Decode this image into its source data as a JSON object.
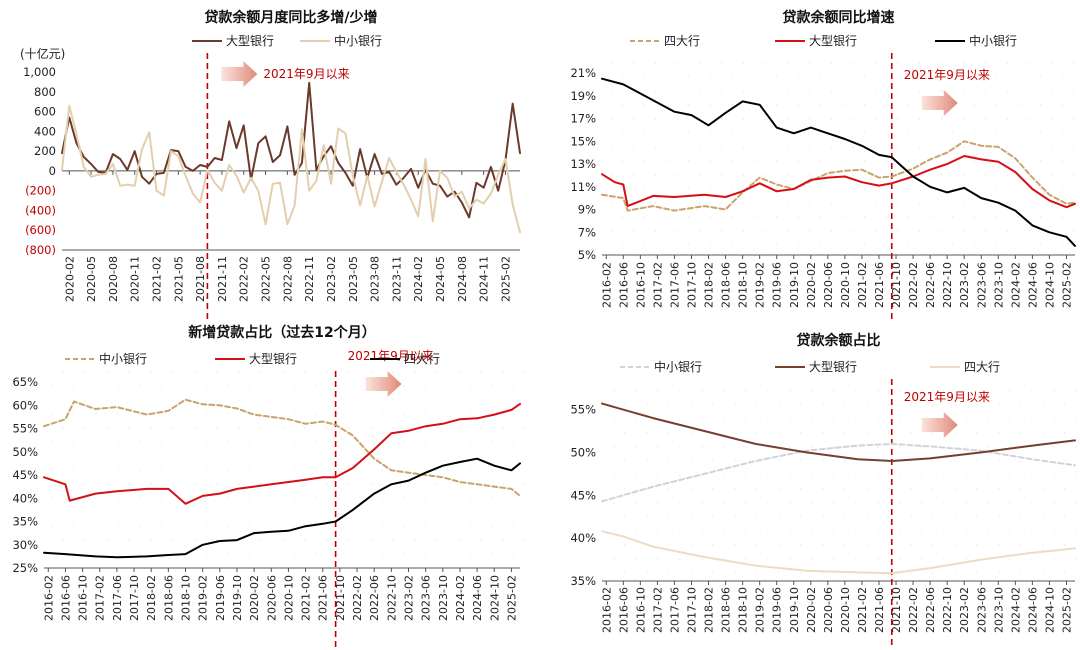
{
  "colors": {
    "large_bank": "#6b3a2a",
    "small_bank": "#e3cfae",
    "big_four_red": "#d40f17",
    "small_bank_dashed": "#c9a36b",
    "black": "#000000",
    "grey_dashed": "#d0d3da",
    "brown_large": "#74402c",
    "beige": "#ecdcc2",
    "vline": "#c00000",
    "annotation": "#c00000",
    "arrow": "#e08a7a"
  },
  "chart_data": [
    {
      "id": "monthly-change",
      "type": "line",
      "title": "贷款余额月度同比多增/少增",
      "ylabel": "(十亿元)",
      "ylim": [
        -800,
        1000
      ],
      "yticks": [
        1000,
        800,
        600,
        400,
        200,
        0,
        -200,
        -400,
        -600,
        -800
      ],
      "ytick_labels": [
        "1,000",
        "800",
        "600",
        "400",
        "200",
        "0",
        "(200)",
        "(400)",
        "(600)",
        "(800)"
      ],
      "x_start": "2020-01",
      "x_end": "2025-04",
      "xticks": [
        "2020-02",
        "2020-05",
        "2020-08",
        "2020-11",
        "2021-02",
        "2021-05",
        "2021-08",
        "2021-11",
        "2022-02",
        "2022-05",
        "2022-08",
        "2022-11",
        "2023-02",
        "2023-05",
        "2023-08",
        "2023-11",
        "2024-02",
        "2024-05",
        "2024-08",
        "2024-11",
        "2025-02"
      ],
      "vline": "2021-09",
      "annotation": "2021年9月以来",
      "series": [
        {
          "name": "大型银行",
          "color_key": "large_bank",
          "style": "solid",
          "width": 2,
          "values": [
            180,
            540,
            280,
            140,
            70,
            -10,
            -20,
            170,
            120,
            10,
            200,
            -60,
            -130,
            -30,
            -20,
            210,
            200,
            40,
            0,
            60,
            40,
            130,
            110,
            500,
            230,
            460,
            -90,
            280,
            350,
            90,
            160,
            450,
            -40,
            80,
            890,
            10,
            150,
            250,
            80,
            -20,
            -150,
            220,
            -70,
            170,
            -30,
            -10,
            -140,
            -70,
            20,
            -170,
            10,
            -130,
            -150,
            -260,
            -210,
            -320,
            -470,
            -120,
            -170,
            40,
            -200,
            110,
            680,
            180
          ]
        },
        {
          "name": "中小银行",
          "color_key": "small_bank",
          "style": "solid",
          "width": 2,
          "values": [
            10,
            660,
            370,
            40,
            -60,
            -40,
            -30,
            70,
            -150,
            -140,
            -150,
            220,
            390,
            -200,
            -250,
            200,
            150,
            -50,
            -230,
            -320,
            10,
            -120,
            -200,
            60,
            -50,
            -220,
            -70,
            -200,
            -540,
            -130,
            -120,
            -540,
            -350,
            420,
            -200,
            -100,
            260,
            -130,
            430,
            380,
            -50,
            -350,
            -50,
            -360,
            -110,
            130,
            -10,
            -140,
            -290,
            -460,
            120,
            -510,
            0,
            -70,
            -260,
            -210,
            -380,
            -290,
            -330,
            -230,
            -40,
            120,
            -340,
            -620
          ]
        }
      ]
    },
    {
      "id": "yoy-growth",
      "type": "line",
      "title": "贷款余额同比增速",
      "ylim": [
        5,
        21
      ],
      "yticks": [
        21,
        19,
        17,
        15,
        13,
        11,
        9,
        7,
        5
      ],
      "ytick_labels": [
        "21%",
        "19%",
        "17%",
        "15%",
        "13%",
        "11%",
        "9%",
        "7%",
        "5%"
      ],
      "x_start": "2016-01",
      "x_end": "2025-04",
      "xticks": [
        "2016-02",
        "2016-06",
        "2016-10",
        "2017-02",
        "2017-06",
        "2017-10",
        "2018-02",
        "2018-06",
        "2018-10",
        "2019-02",
        "2019-06",
        "2019-10",
        "2020-02",
        "2020-06",
        "2020-10",
        "2021-02",
        "2021-06",
        "2021-10",
        "2022-02",
        "2022-06",
        "2022-10",
        "2023-02",
        "2023-06",
        "2023-10",
        "2024-02",
        "2024-06",
        "2024-10",
        "2025-02"
      ],
      "vline": "2021-09",
      "annotation": "2021年9月以来",
      "series": [
        {
          "name": "四大行",
          "color_key": "small_bank_dashed",
          "style": "dashed",
          "width": 2,
          "x": [
            "2016-01",
            "2016-06",
            "2016-07",
            "2017-01",
            "2017-06",
            "2018-01",
            "2018-06",
            "2018-10",
            "2019-02",
            "2019-06",
            "2019-10",
            "2020-02",
            "2020-06",
            "2020-10",
            "2021-02",
            "2021-06",
            "2021-09",
            "2022-02",
            "2022-06",
            "2022-10",
            "2023-02",
            "2023-06",
            "2023-10",
            "2024-02",
            "2024-06",
            "2024-10",
            "2025-02",
            "2025-04"
          ],
          "values": [
            10.3,
            10.0,
            8.9,
            9.3,
            8.9,
            9.3,
            9.0,
            10.5,
            11.8,
            11.2,
            10.8,
            11.5,
            12.2,
            12.4,
            12.5,
            11.8,
            11.9,
            12.6,
            13.4,
            14.0,
            15.0,
            14.6,
            14.5,
            13.5,
            11.8,
            10.3,
            9.5,
            9.6
          ]
        },
        {
          "name": "大型银行",
          "color_key": "big_four_red",
          "style": "solid",
          "width": 2,
          "x": [
            "2016-01",
            "2016-04",
            "2016-06",
            "2016-07",
            "2017-01",
            "2017-06",
            "2018-01",
            "2018-06",
            "2018-10",
            "2019-02",
            "2019-06",
            "2019-10",
            "2020-02",
            "2020-06",
            "2020-10",
            "2021-02",
            "2021-06",
            "2021-09",
            "2022-02",
            "2022-06",
            "2022-10",
            "2023-02",
            "2023-06",
            "2023-10",
            "2024-02",
            "2024-06",
            "2024-10",
            "2025-02",
            "2025-04"
          ],
          "values": [
            12.1,
            11.4,
            11.2,
            9.3,
            10.2,
            10.1,
            10.3,
            10.1,
            10.6,
            11.3,
            10.6,
            10.8,
            11.6,
            11.8,
            11.9,
            11.4,
            11.1,
            11.3,
            11.9,
            12.5,
            13.0,
            13.7,
            13.4,
            13.2,
            12.3,
            10.8,
            9.8,
            9.2,
            9.5
          ]
        },
        {
          "name": "中小银行",
          "color_key": "black",
          "style": "solid",
          "width": 2,
          "x": [
            "2016-01",
            "2016-06",
            "2016-10",
            "2017-02",
            "2017-06",
            "2017-10",
            "2018-02",
            "2018-06",
            "2018-10",
            "2019-02",
            "2019-06",
            "2019-10",
            "2020-02",
            "2020-06",
            "2020-10",
            "2021-02",
            "2021-06",
            "2021-09",
            "2022-02",
            "2022-06",
            "2022-10",
            "2023-02",
            "2023-06",
            "2023-10",
            "2024-02",
            "2024-06",
            "2024-10",
            "2025-02",
            "2025-04"
          ],
          "values": [
            20.5,
            20.0,
            19.2,
            18.4,
            17.6,
            17.3,
            16.4,
            17.5,
            18.5,
            18.2,
            16.2,
            15.7,
            16.2,
            15.7,
            15.2,
            14.6,
            13.8,
            13.6,
            11.9,
            11.0,
            10.5,
            10.9,
            10.0,
            9.6,
            8.9,
            7.6,
            7.0,
            6.6,
            5.8
          ]
        }
      ]
    },
    {
      "id": "new-loan-share",
      "type": "line",
      "title": "新增贷款占比（过去12个月）",
      "ylim": [
        25,
        65
      ],
      "yticks": [
        65,
        60,
        55,
        50,
        45,
        40,
        35,
        30,
        25
      ],
      "ytick_labels": [
        "65%",
        "60%",
        "55%",
        "50%",
        "45%",
        "40%",
        "35%",
        "30%",
        "25%"
      ],
      "x_start": "2016-01",
      "x_end": "2025-04",
      "xticks": [
        "2016-02",
        "2016-06",
        "2016-10",
        "2017-02",
        "2017-06",
        "2017-10",
        "2018-02",
        "2018-06",
        "2018-10",
        "2019-02",
        "2019-06",
        "2019-10",
        "2020-02",
        "2020-06",
        "2020-10",
        "2021-02",
        "2021-06",
        "2021-10",
        "2022-02",
        "2022-06",
        "2022-10",
        "2023-02",
        "2023-06",
        "2023-10",
        "2024-02",
        "2024-06",
        "2024-10",
        "2025-02"
      ],
      "vline": "2021-09",
      "annotation": "2021年9月以来",
      "series": [
        {
          "name": "中小银行",
          "color_key": "small_bank_dashed",
          "style": "dashed",
          "width": 2,
          "x": [
            "2016-01",
            "2016-06",
            "2016-08",
            "2017-01",
            "2017-06",
            "2018-01",
            "2018-06",
            "2018-10",
            "2019-02",
            "2019-06",
            "2019-10",
            "2020-02",
            "2020-06",
            "2020-10",
            "2021-02",
            "2021-06",
            "2021-09",
            "2022-01",
            "2022-06",
            "2022-10",
            "2023-02",
            "2023-06",
            "2023-10",
            "2024-02",
            "2024-06",
            "2024-10",
            "2025-02",
            "2025-04"
          ],
          "values": [
            55.5,
            57.0,
            60.8,
            59.2,
            59.6,
            58.0,
            58.8,
            61.2,
            60.2,
            60.0,
            59.3,
            58.0,
            57.5,
            57.0,
            56.0,
            56.5,
            55.8,
            53.5,
            48.5,
            46.0,
            45.5,
            45.0,
            44.5,
            43.5,
            43.0,
            42.5,
            42.0,
            40.5
          ]
        },
        {
          "name": "大型银行",
          "color_key": "big_four_red",
          "style": "solid",
          "width": 2,
          "x": [
            "2016-01",
            "2016-06",
            "2016-07",
            "2017-01",
            "2017-06",
            "2018-01",
            "2018-06",
            "2018-10",
            "2019-02",
            "2019-06",
            "2019-10",
            "2020-02",
            "2020-06",
            "2020-10",
            "2021-02",
            "2021-06",
            "2021-09",
            "2022-01",
            "2022-06",
            "2022-10",
            "2023-02",
            "2023-06",
            "2023-10",
            "2024-02",
            "2024-06",
            "2024-10",
            "2025-02",
            "2025-04"
          ],
          "values": [
            44.5,
            43.0,
            39.5,
            41.0,
            41.5,
            42.0,
            42.0,
            38.8,
            40.5,
            41.0,
            42.0,
            42.5,
            43.0,
            43.5,
            44.0,
            44.5,
            44.5,
            46.5,
            50.5,
            54.0,
            54.5,
            55.5,
            56.0,
            57.0,
            57.2,
            58.0,
            59.0,
            60.3
          ]
        },
        {
          "name": "四大行",
          "color_key": "black",
          "style": "solid",
          "width": 2,
          "x": [
            "2016-01",
            "2016-06",
            "2017-01",
            "2017-06",
            "2018-01",
            "2018-06",
            "2018-10",
            "2019-02",
            "2019-06",
            "2019-10",
            "2020-02",
            "2020-06",
            "2020-10",
            "2021-02",
            "2021-06",
            "2021-09",
            "2022-01",
            "2022-06",
            "2022-10",
            "2023-02",
            "2023-06",
            "2023-10",
            "2024-02",
            "2024-06",
            "2024-10",
            "2025-02",
            "2025-04"
          ],
          "values": [
            28.3,
            28.0,
            27.5,
            27.3,
            27.5,
            27.8,
            28.0,
            30.0,
            30.8,
            31.0,
            32.5,
            32.8,
            33.0,
            34.0,
            34.5,
            35.0,
            37.5,
            41.0,
            43.0,
            43.8,
            45.5,
            47.0,
            47.8,
            48.5,
            47.0,
            46.0,
            47.5
          ]
        }
      ]
    },
    {
      "id": "balance-share",
      "type": "line",
      "title": "贷款余额占比",
      "ylim": [
        35,
        56
      ],
      "yticks": [
        55,
        50,
        45,
        40,
        35
      ],
      "ytick_labels": [
        "55%",
        "50%",
        "45%",
        "40%",
        "35%"
      ],
      "x_start": "2016-01",
      "x_end": "2025-04",
      "xticks": [
        "2016-02",
        "2016-06",
        "2016-10",
        "2017-02",
        "2017-06",
        "2017-10",
        "2018-02",
        "2018-06",
        "2018-10",
        "2019-02",
        "2019-06",
        "2019-10",
        "2020-02",
        "2020-06",
        "2020-10",
        "2021-02",
        "2021-06",
        "2021-10",
        "2022-02",
        "2022-06",
        "2022-10",
        "2023-02",
        "2023-06",
        "2023-10",
        "2024-02",
        "2024-06",
        "2024-10",
        "2025-02"
      ],
      "vline": "2021-09",
      "annotation": "2021年9月以来",
      "series": [
        {
          "name": "中小银行",
          "color_key": "grey_dashed",
          "style": "dashed",
          "width": 2,
          "x": [
            "2016-01",
            "2017-01",
            "2018-01",
            "2019-01",
            "2020-01",
            "2021-01",
            "2021-09",
            "2022-06",
            "2023-06",
            "2024-06",
            "2025-04"
          ],
          "values": [
            44.3,
            46.0,
            47.5,
            49.0,
            50.2,
            50.8,
            51.0,
            50.7,
            50.2,
            49.2,
            48.5
          ]
        },
        {
          "name": "大型银行",
          "color_key": "brown_large",
          "style": "solid",
          "width": 2,
          "x": [
            "2016-01",
            "2017-01",
            "2018-01",
            "2019-01",
            "2020-01",
            "2021-01",
            "2021-09",
            "2022-06",
            "2023-06",
            "2024-06",
            "2025-04"
          ],
          "values": [
            55.7,
            54.0,
            52.5,
            51.0,
            50.0,
            49.2,
            49.0,
            49.3,
            50.0,
            50.8,
            51.4
          ]
        },
        {
          "name": "四大行",
          "color_key": "beige",
          "style": "solid",
          "width": 2,
          "x": [
            "2016-01",
            "2016-06",
            "2017-01",
            "2018-01",
            "2019-01",
            "2020-01",
            "2021-01",
            "2021-09",
            "2022-06",
            "2023-06",
            "2024-06",
            "2025-04"
          ],
          "values": [
            40.8,
            40.2,
            39.0,
            37.8,
            36.8,
            36.2,
            36.0,
            35.9,
            36.5,
            37.5,
            38.3,
            38.8
          ]
        }
      ]
    }
  ]
}
